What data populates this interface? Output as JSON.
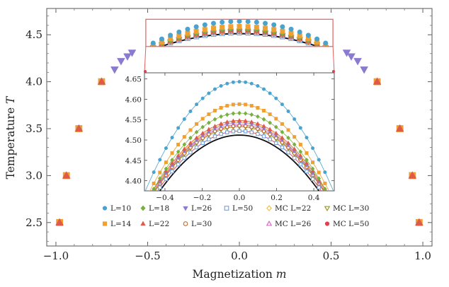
{
  "chart_data": {
    "type": "scatter",
    "xlabel": "Magnetization m",
    "ylabel": "Temperature T",
    "xlim": [
      -1.05,
      1.05
    ],
    "ylim": [
      2.25,
      4.78
    ],
    "xticks": [
      "-1.0",
      "-0.5",
      "0.0",
      "0.5",
      "1.0"
    ],
    "xtick_values": [
      -1.0,
      -0.5,
      0.0,
      0.5,
      1.0
    ],
    "yticks": [
      "2.5",
      "3.0",
      "3.5",
      "4.0",
      "4.5"
    ],
    "ytick_values": [
      2.5,
      3.0,
      3.5,
      4.0,
      4.5
    ],
    "legend_placement": "bottom-center",
    "series": [
      {
        "name": "L=10",
        "marker": "circle",
        "color": "#4aa3cf",
        "filled": true,
        "Tc": 4.643,
        "a": 1.05
      },
      {
        "name": "L=14",
        "marker": "square",
        "color": "#f0a030",
        "filled": true,
        "Tc": 4.588,
        "a": 0.92
      },
      {
        "name": "L=18",
        "marker": "diamond",
        "color": "#78b040",
        "filled": true,
        "Tc": 4.566,
        "a": 0.88
      },
      {
        "name": "L=22",
        "marker": "triangle-up",
        "color": "#e05a4a",
        "filled": true,
        "Tc": 4.548,
        "a": 0.8
      },
      {
        "name": "L=26",
        "marker": "triangle-down",
        "color": "#8a7ad0",
        "filled": true,
        "Tc": 4.542,
        "a": 0.8
      },
      {
        "name": "L=30",
        "marker": "circle",
        "color": "#c46a2a",
        "filled": false,
        "Tc": 4.535,
        "a": 0.78
      },
      {
        "name": "L=50",
        "marker": "square",
        "color": "#6fa0e0",
        "filled": false,
        "Tc": 4.522,
        "a": 0.76
      },
      {
        "name": "MC L=22",
        "marker": "diamond",
        "color": "#f0c030",
        "filled": false,
        "Tc": 4.545,
        "a": 0.8
      },
      {
        "name": "MC L=26",
        "marker": "triangle-up",
        "color": "#d060c0",
        "filled": false,
        "Tc": 4.538,
        "a": 0.78
      },
      {
        "name": "MC L=30",
        "marker": "triangle-down",
        "color": "#909020",
        "filled": false,
        "Tc": 4.532,
        "a": 0.77
      },
      {
        "name": "MC L=50",
        "marker": "circle",
        "color": "#e04050",
        "filled": true,
        "Tc": 4.522,
        "a": 0.76
      }
    ],
    "outer_points": [
      {
        "series": "L=14",
        "x": [
          -0.98,
          0.98
        ],
        "y": 2.5
      },
      {
        "series": "L=22",
        "x": [
          -0.98,
          0.98
        ],
        "y": 2.5
      },
      {
        "series": "L=14",
        "x": [
          -0.943,
          0.943
        ],
        "y": 3.0
      },
      {
        "series": "L=22",
        "x": [
          -0.943,
          0.943
        ],
        "y": 3.0
      },
      {
        "series": "L=14",
        "x": [
          -0.875,
          0.875
        ],
        "y": 3.5
      },
      {
        "series": "L=22",
        "x": [
          -0.875,
          0.875
        ],
        "y": 3.5
      },
      {
        "series": "L=14",
        "x": [
          -0.751,
          0.751
        ],
        "y": 4.0
      },
      {
        "series": "L=22",
        "x": [
          -0.751,
          0.751
        ],
        "y": 4.0
      },
      {
        "series": "L=26",
        "x": [
          -0.68,
          0.68
        ],
        "y": 4.13
      },
      {
        "series": "L=26",
        "x": [
          -0.645,
          0.645
        ],
        "y": 4.22
      },
      {
        "series": "L=26",
        "x": [
          -0.61,
          0.61
        ],
        "y": 4.27
      },
      {
        "series": "L=26",
        "x": [
          -0.585,
          0.585
        ],
        "y": 4.31
      }
    ],
    "black_curve": {
      "Tc": 4.512,
      "a": 0.75
    },
    "inset": {
      "xlim": [
        -0.51,
        0.51
      ],
      "ylim": [
        4.375,
        4.665
      ],
      "xticks": [
        "-0.4",
        "-0.2",
        "0.0",
        "0.2",
        "0.4"
      ],
      "xtick_values": [
        -0.4,
        -0.2,
        0.0,
        0.2,
        0.4
      ],
      "yticks": [
        "4.40",
        "4.45",
        "4.50",
        "4.55",
        "4.60",
        "4.65"
      ],
      "ytick_values": [
        4.4,
        4.45,
        4.5,
        4.55,
        4.6,
        4.65
      ]
    },
    "zoom_region": {
      "xlim": [
        -0.51,
        0.51
      ],
      "ylim": [
        4.375,
        4.665
      ]
    }
  }
}
